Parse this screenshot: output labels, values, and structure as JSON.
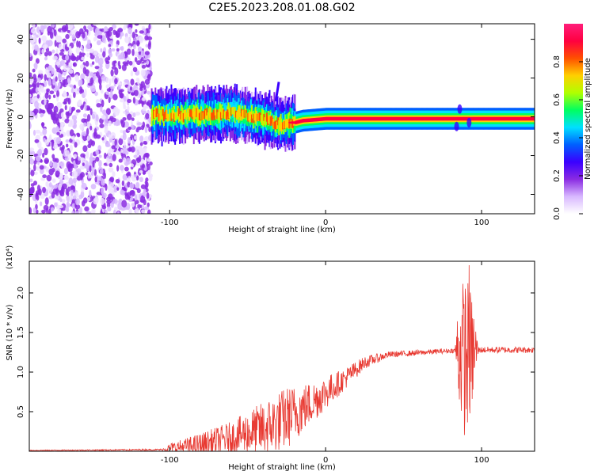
{
  "title": "C2E5.2023.208.01.08.G02",
  "colors": {
    "snr_line": "#e83a32",
    "colormap": [
      "#ffffff",
      "#d8b8ff",
      "#8a2be2",
      "#3a00ff",
      "#0060ff",
      "#00e0ff",
      "#00ff60",
      "#b0ff00",
      "#ffd000",
      "#ff5000",
      "#ff0040",
      "#ff1e7a"
    ]
  },
  "chart_data": [
    {
      "type": "heatmap",
      "title": "C2E5.2023.208.01.08.G02",
      "xlabel": "Height of straight line (km)",
      "ylabel": "Frequency (Hz)",
      "xlim": [
        -190,
        134
      ],
      "ylim": [
        -50,
        48
      ],
      "x_ticks": [
        -100,
        0,
        100
      ],
      "y_ticks": [
        -40,
        -20,
        0,
        20,
        40
      ],
      "colorbar": {
        "label": "Normalized spectral amplitude",
        "range": [
          0.0,
          1.0
        ],
        "ticks": [
          0.0,
          0.2,
          0.4,
          0.6,
          0.8
        ]
      },
      "ridge": [
        {
          "x": -112,
          "y": 1
        },
        {
          "x": -80,
          "y": 1
        },
        {
          "x": -60,
          "y": 2
        },
        {
          "x": -40,
          "y": -1
        },
        {
          "x": -30,
          "y": -4
        },
        {
          "x": -20,
          "y": -3
        },
        {
          "x": -15,
          "y": -2
        },
        {
          "x": 0,
          "y": -1
        },
        {
          "x": 30,
          "y": -1
        },
        {
          "x": 60,
          "y": -1
        },
        {
          "x": 90,
          "y": -1
        },
        {
          "x": 134,
          "y": -1
        }
      ],
      "noise_region_x": [
        -190,
        -112
      ],
      "branch": [
        {
          "x": -32,
          "y": 8
        },
        {
          "x": -30,
          "y": 18
        }
      ]
    },
    {
      "type": "line",
      "xlabel": "Height of straight line (km)",
      "ylabel": "SNR (10 * v/v)",
      "y_multiplier": "(x10⁴)",
      "xlim": [
        -190,
        134
      ],
      "ylim": [
        0,
        2.4
      ],
      "x_ticks": [
        -100,
        0,
        100
      ],
      "y_ticks": [
        0.5,
        1.0,
        1.5,
        2.0
      ],
      "series": [
        {
          "envelope": [
            {
              "x": -190,
              "base": 0.01,
              "amp": 0.005
            },
            {
              "x": -105,
              "base": 0.02,
              "amp": 0.01
            },
            {
              "x": -100,
              "base": 0.04,
              "amp": 0.06
            },
            {
              "x": -80,
              "base": 0.08,
              "amp": 0.15
            },
            {
              "x": -60,
              "base": 0.18,
              "amp": 0.2
            },
            {
              "x": -40,
              "base": 0.28,
              "amp": 0.35
            },
            {
              "x": -25,
              "base": 0.42,
              "amp": 0.4
            },
            {
              "x": -10,
              "base": 0.6,
              "amp": 0.28
            },
            {
              "x": 10,
              "base": 0.88,
              "amp": 0.15
            },
            {
              "x": 25,
              "base": 1.12,
              "amp": 0.08
            },
            {
              "x": 40,
              "base": 1.22,
              "amp": 0.04
            },
            {
              "x": 80,
              "base": 1.27,
              "amp": 0.03
            },
            {
              "x": 83,
              "base": 1.27,
              "amp": 0.03
            },
            {
              "x": 85,
              "base": 1.27,
              "amp": 0.7
            },
            {
              "x": 90,
              "base": 1.2,
              "amp": 1.1
            },
            {
              "x": 95,
              "base": 1.25,
              "amp": 0.6
            },
            {
              "x": 98,
              "base": 1.28,
              "amp": 0.04
            },
            {
              "x": 134,
              "base": 1.28,
              "amp": 0.04
            }
          ],
          "peak": {
            "x": 92,
            "y": 2.35
          }
        }
      ]
    }
  ]
}
